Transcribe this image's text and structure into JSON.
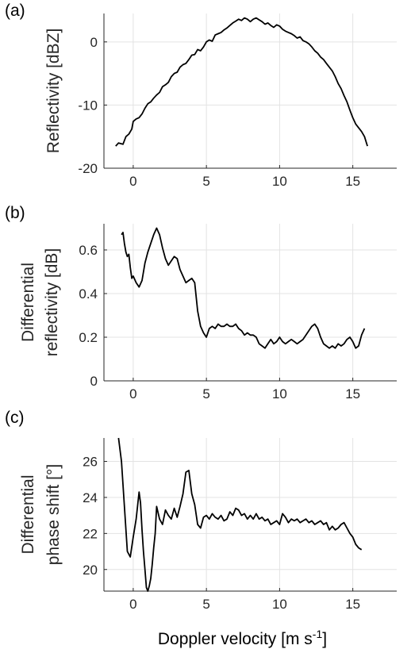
{
  "chart_data": [
    {
      "panel_label": "(a)",
      "type": "line",
      "ylabel": "Reflectivity [dBZ]",
      "xlim": [
        -2,
        18
      ],
      "ylim": [
        -20,
        4.5
      ],
      "xticks": [
        0,
        5,
        10,
        15
      ],
      "yticks": [
        -20,
        -10,
        0
      ],
      "grid": true,
      "series": [
        {
          "x": [
            -1.2,
            -1.0,
            -0.7,
            -0.5,
            -0.3,
            -0.1,
            0.0,
            0.2,
            0.4,
            0.6,
            0.8,
            1.0,
            1.2,
            1.4,
            1.6,
            1.8,
            2.0,
            2.2,
            2.4,
            2.6,
            2.8,
            3.0,
            3.2,
            3.4,
            3.6,
            3.8,
            4.0,
            4.2,
            4.4,
            4.6,
            4.8,
            5.0,
            5.2,
            5.4,
            5.6,
            5.8,
            6.0,
            6.2,
            6.4,
            6.6,
            6.8,
            7.0,
            7.2,
            7.4,
            7.6,
            7.8,
            8.0,
            8.2,
            8.4,
            8.6,
            8.8,
            9.0,
            9.2,
            9.4,
            9.6,
            9.8,
            10.0,
            10.2,
            10.4,
            10.6,
            10.8,
            11.0,
            11.2,
            11.4,
            11.6,
            11.8,
            12.0,
            12.2,
            12.4,
            12.6,
            12.8,
            13.0,
            13.2,
            13.4,
            13.6,
            13.8,
            14.0,
            14.2,
            14.4,
            14.6,
            14.8,
            15.0,
            15.2,
            15.4,
            15.6,
            15.8,
            16.0
          ],
          "y": [
            -16.5,
            -16.0,
            -16.2,
            -15.0,
            -14.6,
            -13.8,
            -12.6,
            -12.2,
            -12.0,
            -11.4,
            -10.5,
            -9.8,
            -9.5,
            -8.9,
            -8.4,
            -8.0,
            -7.1,
            -6.8,
            -6.4,
            -5.5,
            -5.0,
            -4.8,
            -4.0,
            -3.6,
            -3.4,
            -2.8,
            -2.1,
            -2.0,
            -1.2,
            -1.4,
            -0.8,
            0.0,
            0.3,
            0.1,
            1.1,
            1.3,
            1.5,
            1.9,
            2.2,
            2.6,
            3.0,
            3.3,
            3.6,
            3.4,
            3.8,
            3.6,
            3.2,
            3.6,
            3.8,
            3.5,
            3.2,
            2.8,
            3.0,
            2.6,
            2.3,
            2.7,
            2.5,
            2.0,
            1.7,
            1.5,
            1.3,
            1.0,
            0.6,
            0.8,
            0.2,
            0.0,
            -0.3,
            -0.8,
            -1.4,
            -1.8,
            -2.4,
            -2.8,
            -3.4,
            -4.0,
            -4.6,
            -5.5,
            -6.6,
            -7.4,
            -8.5,
            -9.5,
            -10.8,
            -12.0,
            -13.0,
            -13.6,
            -14.2,
            -15.0,
            -16.5
          ]
        }
      ]
    },
    {
      "panel_label": "(b)",
      "type": "line",
      "ylabel": [
        "Differential",
        "reflectivity [dB]"
      ],
      "xlim": [
        -2,
        18
      ],
      "ylim": [
        0,
        0.72
      ],
      "xticks": [
        0,
        5,
        10,
        15
      ],
      "yticks": [
        0,
        0.2,
        0.4,
        0.6
      ],
      "grid": true,
      "series": [
        {
          "x": [
            -0.8,
            -0.7,
            -0.6,
            -0.5,
            -0.4,
            -0.3,
            -0.2,
            -0.1,
            0.0,
            0.2,
            0.4,
            0.6,
            0.8,
            1.0,
            1.2,
            1.4,
            1.6,
            1.8,
            2.0,
            2.2,
            2.4,
            2.6,
            2.8,
            3.0,
            3.2,
            3.4,
            3.6,
            3.8,
            4.0,
            4.2,
            4.4,
            4.6,
            4.8,
            5.0,
            5.2,
            5.4,
            5.6,
            5.8,
            6.0,
            6.2,
            6.4,
            6.6,
            6.8,
            7.0,
            7.2,
            7.4,
            7.6,
            7.8,
            8.0,
            8.2,
            8.4,
            8.6,
            8.8,
            9.0,
            9.2,
            9.4,
            9.6,
            9.8,
            10.0,
            10.2,
            10.4,
            10.6,
            10.8,
            11.0,
            11.2,
            11.4,
            11.6,
            11.8,
            12.0,
            12.2,
            12.4,
            12.6,
            12.8,
            13.0,
            13.2,
            13.4,
            13.6,
            13.8,
            14.0,
            14.2,
            14.4,
            14.6,
            14.8,
            15.0,
            15.2,
            15.4,
            15.6,
            15.8
          ],
          "y": [
            0.67,
            0.68,
            0.63,
            0.59,
            0.57,
            0.58,
            0.52,
            0.47,
            0.48,
            0.45,
            0.43,
            0.46,
            0.54,
            0.59,
            0.63,
            0.67,
            0.7,
            0.67,
            0.61,
            0.56,
            0.53,
            0.55,
            0.57,
            0.56,
            0.51,
            0.48,
            0.45,
            0.46,
            0.47,
            0.45,
            0.32,
            0.25,
            0.22,
            0.2,
            0.24,
            0.25,
            0.24,
            0.26,
            0.25,
            0.25,
            0.26,
            0.25,
            0.25,
            0.26,
            0.24,
            0.23,
            0.21,
            0.22,
            0.21,
            0.21,
            0.2,
            0.17,
            0.16,
            0.15,
            0.17,
            0.19,
            0.17,
            0.18,
            0.2,
            0.18,
            0.17,
            0.18,
            0.19,
            0.18,
            0.17,
            0.18,
            0.19,
            0.21,
            0.23,
            0.25,
            0.26,
            0.24,
            0.2,
            0.17,
            0.16,
            0.15,
            0.16,
            0.15,
            0.17,
            0.16,
            0.17,
            0.19,
            0.2,
            0.18,
            0.15,
            0.16,
            0.21,
            0.24
          ]
        }
      ]
    },
    {
      "panel_label": "(c)",
      "type": "line",
      "ylabel": [
        "Differential",
        "phase shift [°]"
      ],
      "xlim": [
        -2,
        18
      ],
      "ylim": [
        18.8,
        27.3
      ],
      "xticks": [
        0,
        5,
        10,
        15
      ],
      "yticks": [
        20,
        22,
        24,
        26
      ],
      "grid": true,
      "xlabel": "Doppler velocity [m s",
      "xlabel_sup": "-1",
      "xlabel_end": "]",
      "series": [
        {
          "x": [
            -1.0,
            -0.8,
            -0.6,
            -0.4,
            -0.2,
            0.0,
            0.2,
            0.4,
            0.5,
            0.6,
            0.7,
            0.8,
            0.9,
            1.0,
            1.1,
            1.2,
            1.3,
            1.4,
            1.5,
            1.6,
            1.8,
            2.0,
            2.2,
            2.4,
            2.6,
            2.8,
            3.0,
            3.2,
            3.4,
            3.6,
            3.8,
            4.0,
            4.2,
            4.4,
            4.6,
            4.8,
            5.0,
            5.2,
            5.4,
            5.6,
            5.8,
            6.0,
            6.2,
            6.4,
            6.6,
            6.8,
            7.0,
            7.2,
            7.4,
            7.6,
            7.8,
            8.0,
            8.2,
            8.4,
            8.6,
            8.8,
            9.0,
            9.2,
            9.4,
            9.6,
            9.8,
            10.0,
            10.2,
            10.4,
            10.6,
            10.8,
            11.0,
            11.2,
            11.4,
            11.6,
            11.8,
            12.0,
            12.2,
            12.4,
            12.6,
            12.8,
            13.0,
            13.2,
            13.4,
            13.6,
            13.8,
            14.0,
            14.2,
            14.4,
            14.6,
            14.8,
            15.0,
            15.2,
            15.4,
            15.6
          ],
          "y": [
            27.3,
            26.0,
            23.5,
            21.0,
            20.7,
            21.8,
            22.8,
            24.3,
            23.7,
            22.2,
            21.0,
            20.0,
            19.0,
            18.8,
            19.1,
            19.5,
            20.3,
            21.2,
            22.0,
            23.5,
            22.8,
            22.5,
            23.3,
            23.0,
            22.8,
            23.4,
            22.9,
            23.5,
            24.2,
            25.4,
            25.5,
            24.2,
            23.6,
            22.5,
            22.3,
            22.9,
            23.0,
            22.8,
            23.1,
            22.9,
            22.8,
            23.0,
            22.7,
            22.8,
            23.2,
            23.0,
            23.4,
            23.3,
            23.0,
            23.1,
            22.8,
            23.0,
            22.8,
            23.1,
            22.8,
            22.9,
            22.7,
            22.8,
            22.5,
            22.6,
            22.7,
            22.5,
            23.1,
            22.9,
            22.6,
            22.8,
            22.7,
            22.8,
            22.6,
            22.7,
            22.8,
            22.6,
            22.7,
            22.5,
            22.6,
            22.7,
            22.5,
            22.6,
            22.2,
            22.4,
            22.2,
            22.3,
            22.5,
            22.6,
            22.3,
            22.0,
            21.8,
            21.4,
            21.2,
            21.1
          ]
        }
      ]
    }
  ]
}
